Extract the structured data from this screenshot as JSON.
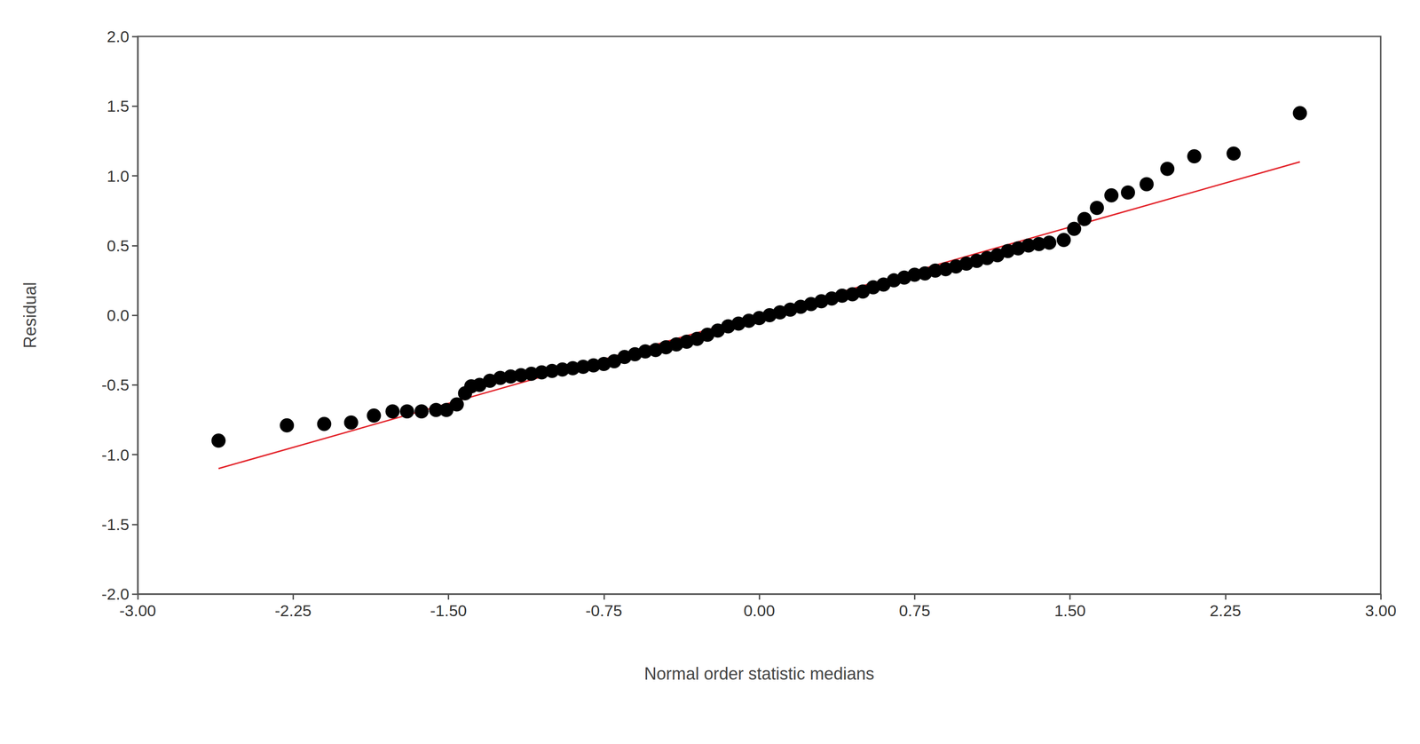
{
  "chart_data": {
    "type": "scatter",
    "x_label": "Normal order statistic medians",
    "y_label": "Residual",
    "x": [
      -2.61,
      -2.28,
      -2.1,
      -1.97,
      -1.86,
      -1.77,
      -1.7,
      -1.63,
      -1.56,
      -1.51,
      -1.46,
      -1.42,
      -1.39,
      -1.35,
      -1.3,
      -1.25,
      -1.2,
      -1.15,
      -1.1,
      -1.05,
      -1.0,
      -0.95,
      -0.9,
      -0.85,
      -0.8,
      -0.75,
      -0.7,
      -0.65,
      -0.6,
      -0.55,
      -0.5,
      -0.45,
      -0.4,
      -0.35,
      -0.3,
      -0.25,
      -0.2,
      -0.15,
      -0.1,
      -0.05,
      0.0,
      0.05,
      0.1,
      0.15,
      0.2,
      0.25,
      0.3,
      0.35,
      0.4,
      0.45,
      0.5,
      0.55,
      0.6,
      0.65,
      0.7,
      0.75,
      0.8,
      0.85,
      0.9,
      0.95,
      1.0,
      1.05,
      1.1,
      1.15,
      1.2,
      1.25,
      1.3,
      1.35,
      1.4,
      1.47,
      1.52,
      1.57,
      1.63,
      1.7,
      1.78,
      1.87,
      1.97,
      2.1,
      2.29,
      2.61
    ],
    "values": [
      -0.9,
      -0.79,
      -0.78,
      -0.77,
      -0.72,
      -0.69,
      -0.69,
      -0.69,
      -0.68,
      -0.68,
      -0.64,
      -0.56,
      -0.51,
      -0.5,
      -0.47,
      -0.45,
      -0.44,
      -0.43,
      -0.42,
      -0.41,
      -0.4,
      -0.39,
      -0.38,
      -0.37,
      -0.36,
      -0.35,
      -0.33,
      -0.3,
      -0.28,
      -0.26,
      -0.25,
      -0.23,
      -0.21,
      -0.19,
      -0.17,
      -0.14,
      -0.11,
      -0.08,
      -0.06,
      -0.04,
      -0.02,
      0.0,
      0.02,
      0.04,
      0.06,
      0.08,
      0.1,
      0.12,
      0.14,
      0.15,
      0.17,
      0.2,
      0.22,
      0.25,
      0.27,
      0.29,
      0.3,
      0.32,
      0.33,
      0.35,
      0.37,
      0.39,
      0.41,
      0.43,
      0.46,
      0.48,
      0.5,
      0.51,
      0.52,
      0.54,
      0.62,
      0.69,
      0.77,
      0.86,
      0.88,
      0.94,
      1.05,
      1.14,
      1.16,
      1.45
    ],
    "color": "#000000",
    "marker": "circle",
    "reference_line": {
      "x": [
        -2.61,
        2.61
      ],
      "values": [
        -1.1,
        1.1
      ],
      "color": "#e3242b",
      "line_style": "solid"
    },
    "xlim": [
      -3,
      3
    ],
    "xticks": [
      {
        "value": -3,
        "label": "-3.00"
      },
      {
        "value": -2.25,
        "label": "-2.25"
      },
      {
        "value": -1.5,
        "label": "-1.50"
      },
      {
        "value": -0.75,
        "label": "-0.75"
      },
      {
        "value": 0,
        "label": "0.00"
      },
      {
        "value": 0.75,
        "label": "0.75"
      },
      {
        "value": 1.5,
        "label": "1.50"
      },
      {
        "value": 2.25,
        "label": "2.25"
      },
      {
        "value": 3,
        "label": "3.00"
      }
    ],
    "ylim": [
      -2,
      2
    ],
    "yticks": [
      {
        "value": -2,
        "label": "-2.0"
      },
      {
        "value": -1.5,
        "label": "-1.5"
      },
      {
        "value": -1,
        "label": "-1.0"
      },
      {
        "value": -0.5,
        "label": "-0.5"
      },
      {
        "value": 0,
        "label": "0.0"
      },
      {
        "value": 0.5,
        "label": "0.5"
      },
      {
        "value": 1,
        "label": "1.0"
      },
      {
        "value": 1.5,
        "label": "1.5"
      },
      {
        "value": 2,
        "label": "2.0"
      }
    ],
    "grid": false
  }
}
